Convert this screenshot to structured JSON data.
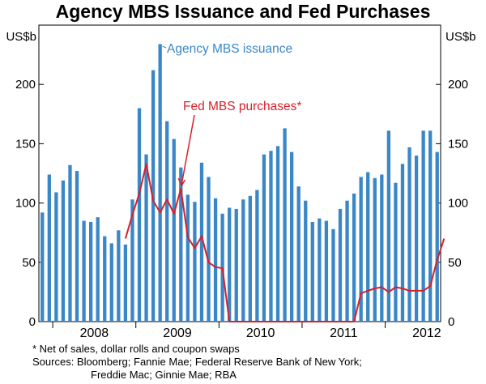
{
  "chart_data": {
    "type": "bar",
    "title": "Agency MBS Issuance and Fed Purchases",
    "left_unit": "US$b",
    "right_unit": "US$b",
    "ylim": [
      0,
      250
    ],
    "yticks": [
      0,
      50,
      100,
      150,
      200
    ],
    "year_labels": [
      "2008",
      "2009",
      "2010",
      "2011",
      "2012"
    ],
    "series": [
      {
        "name": "Agency MBS issuance",
        "type": "bar",
        "color": "#3a87c8",
        "values": [
          92,
          124,
          109,
          119,
          132,
          127,
          85,
          84,
          88,
          72,
          66,
          77,
          65,
          103,
          180,
          141,
          212,
          234,
          169,
          154,
          130,
          107,
          101,
          134,
          122,
          104,
          91,
          96,
          95,
          103,
          106,
          111,
          141,
          144,
          148,
          163,
          143,
          114,
          102,
          84,
          87,
          85,
          78,
          95,
          102,
          108,
          122,
          126,
          121,
          124,
          161,
          117,
          133,
          147,
          140,
          161,
          161,
          143
        ]
      },
      {
        "name": "Fed MBS purchases*",
        "type": "line",
        "color": "#d7202a",
        "points": [
          [
            12,
            70
          ],
          [
            13,
            90
          ],
          [
            14,
            108
          ],
          [
            15,
            133
          ],
          [
            16,
            102
          ],
          [
            17,
            92
          ],
          [
            18,
            103
          ],
          [
            19,
            91
          ],
          [
            20,
            112
          ],
          [
            21,
            71
          ],
          [
            22,
            62
          ],
          [
            23,
            72
          ],
          [
            24,
            50
          ],
          [
            25,
            46
          ],
          [
            26,
            45
          ],
          [
            27,
            0
          ],
          [
            28,
            0
          ],
          [
            29,
            0
          ],
          [
            30,
            0
          ],
          [
            31,
            0
          ],
          [
            32,
            0
          ],
          [
            33,
            0
          ],
          [
            34,
            0
          ],
          [
            35,
            0
          ],
          [
            36,
            0
          ],
          [
            37,
            0
          ],
          [
            38,
            0
          ],
          [
            39,
            0
          ],
          [
            40,
            0
          ],
          [
            41,
            0
          ],
          [
            42,
            0
          ],
          [
            43,
            0
          ],
          [
            44,
            0
          ],
          [
            45,
            0
          ],
          [
            46,
            24
          ],
          [
            47,
            26
          ],
          [
            48,
            28
          ],
          [
            49,
            29
          ],
          [
            50,
            25
          ],
          [
            51,
            29
          ],
          [
            52,
            28
          ],
          [
            53,
            26
          ],
          [
            54,
            26
          ],
          [
            55,
            26
          ],
          [
            56,
            30
          ],
          [
            57,
            52
          ],
          [
            58,
            70
          ]
        ]
      }
    ],
    "annotations": [
      "Agency MBS issuance",
      "Fed MBS purchases*"
    ]
  },
  "footnotes": {
    "note": "*    Net of sales, dollar rolls and coupon swaps",
    "sources_line1": "Sources: Bloomberg; Fannie Mae; Federal Reserve Bank of New York;",
    "sources_line2": "Freddie Mac; Ginnie Mae; RBA"
  }
}
